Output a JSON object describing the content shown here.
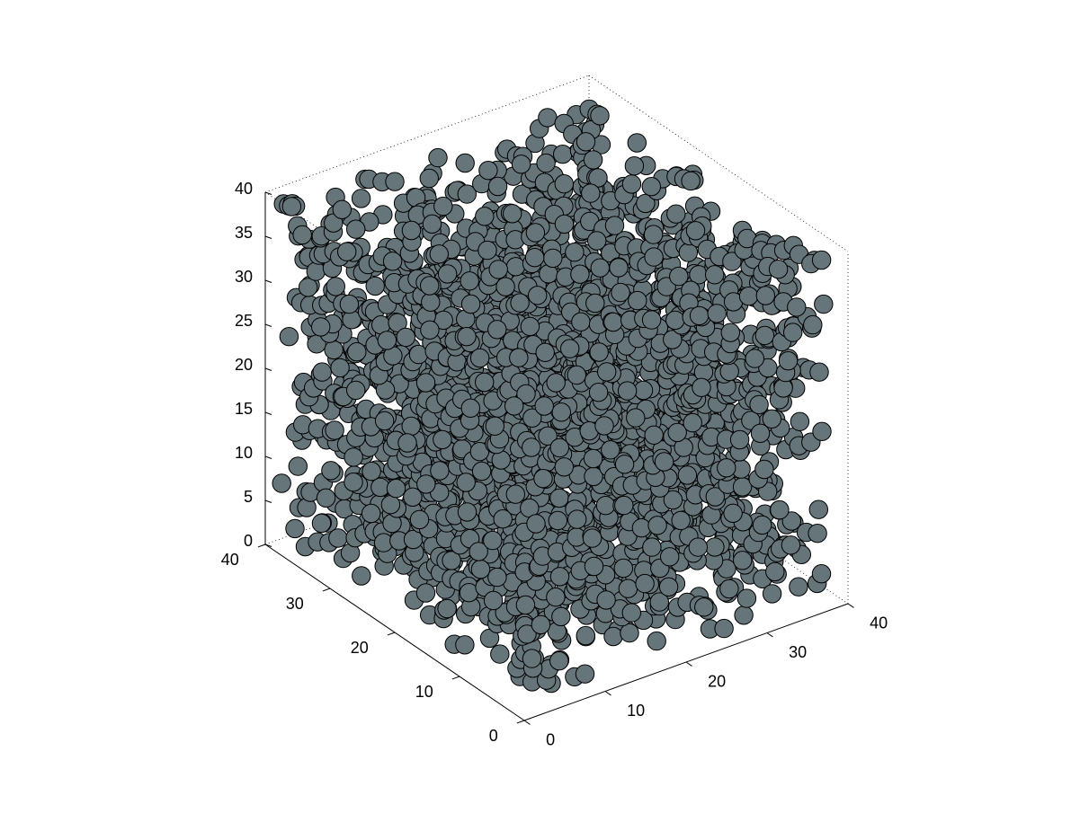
{
  "chart_data": {
    "type": "scatter",
    "subtype": "3d-sphere-packing",
    "title": "",
    "xlabel": "",
    "ylabel": "",
    "zlabel": "",
    "xlim": [
      0,
      40
    ],
    "ylim": [
      0,
      40
    ],
    "zlim": [
      0,
      40
    ],
    "grid": false,
    "box": true,
    "view": "isometric",
    "marker_color": "#66757a",
    "edge_color": "#000000",
    "sphere_count_estimate": 3000,
    "sphere_diameter": 2,
    "x_ticks": [
      {
        "value": 0,
        "label": "0"
      },
      {
        "value": 10,
        "label": "10"
      },
      {
        "value": 20,
        "label": "20"
      },
      {
        "value": 30,
        "label": "30"
      },
      {
        "value": 40,
        "label": "40"
      }
    ],
    "y_ticks": [
      {
        "value": 0,
        "label": "0"
      },
      {
        "value": 10,
        "label": "10"
      },
      {
        "value": 20,
        "label": "20"
      },
      {
        "value": 30,
        "label": "30"
      },
      {
        "value": 40,
        "label": "40"
      }
    ],
    "z_ticks": [
      {
        "value": 0,
        "label": "0"
      },
      {
        "value": 5,
        "label": "5"
      },
      {
        "value": 10,
        "label": "10"
      },
      {
        "value": 15,
        "label": "15"
      },
      {
        "value": 20,
        "label": "20"
      },
      {
        "value": 25,
        "label": "25"
      },
      {
        "value": 30,
        "label": "30"
      },
      {
        "value": 35,
        "label": "35"
      },
      {
        "value": 40,
        "label": "40"
      }
    ]
  }
}
